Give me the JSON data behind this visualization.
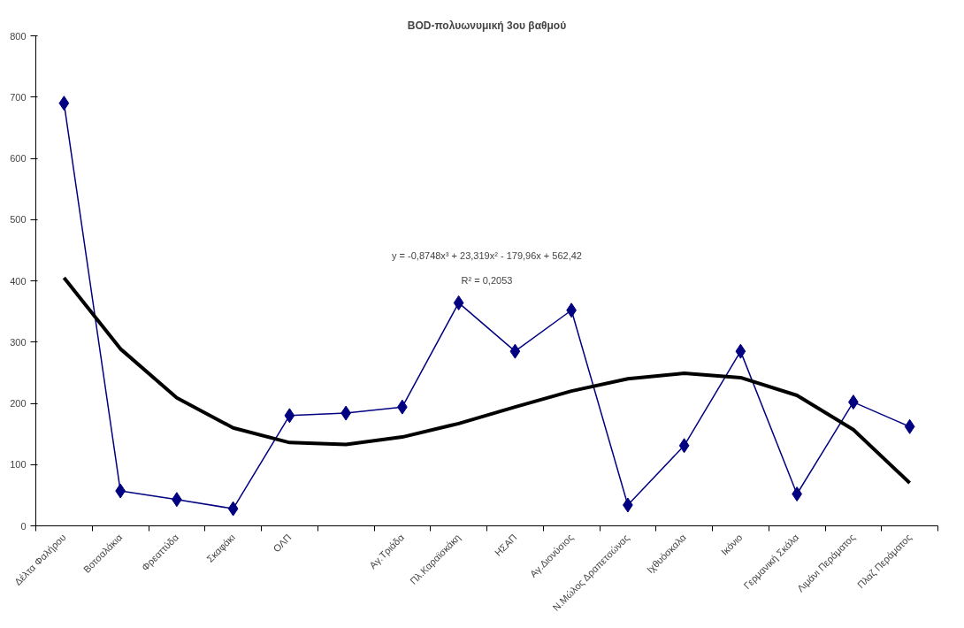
{
  "chart_data": {
    "type": "line",
    "title": "BOD-πολυωνυμική 3ου βαθμού",
    "categories": [
      "Δέλτα Φαλήρου",
      "Βοτσαλάκια",
      "Φρεαττύδα",
      "Σκαφάκι",
      "ΟΛΠ",
      null,
      "Αγ.Τριάδα",
      "Πλ.Καραϊσκάκη",
      "ΗΣΑΠ",
      "Αγ.Διονύσιος",
      "Ν.Μώλος Δραπετσώνας",
      "Ιχθυόσκαλα",
      "Ικόνιο",
      "Γερμανική Σκάλα",
      "Λιμάνι Περάματος",
      "Πλαζ Περάματος"
    ],
    "series": [
      {
        "color": "#000080",
        "marker": "diamond",
        "values": [
          690,
          57,
          43,
          28,
          180,
          184,
          194,
          364,
          285,
          352,
          34,
          131,
          285,
          52,
          202,
          162
        ]
      },
      {
        "type": "line",
        "color": "#000000",
        "marker": "none",
        "values": [
          405,
          289,
          209,
          160,
          136,
          133,
          145,
          167,
          194,
          220,
          240,
          249,
          242,
          213,
          157,
          70
        ]
      }
    ],
    "ylim": [
      0,
      800
    ],
    "yticks": [
      0,
      100,
      200,
      300,
      400,
      500,
      600,
      700,
      800
    ],
    "grid": false,
    "annotations": [
      "y = -0,8748x³ + 23,319x² - 179,96x + 562,42",
      "R² = 0,2053"
    ]
  }
}
